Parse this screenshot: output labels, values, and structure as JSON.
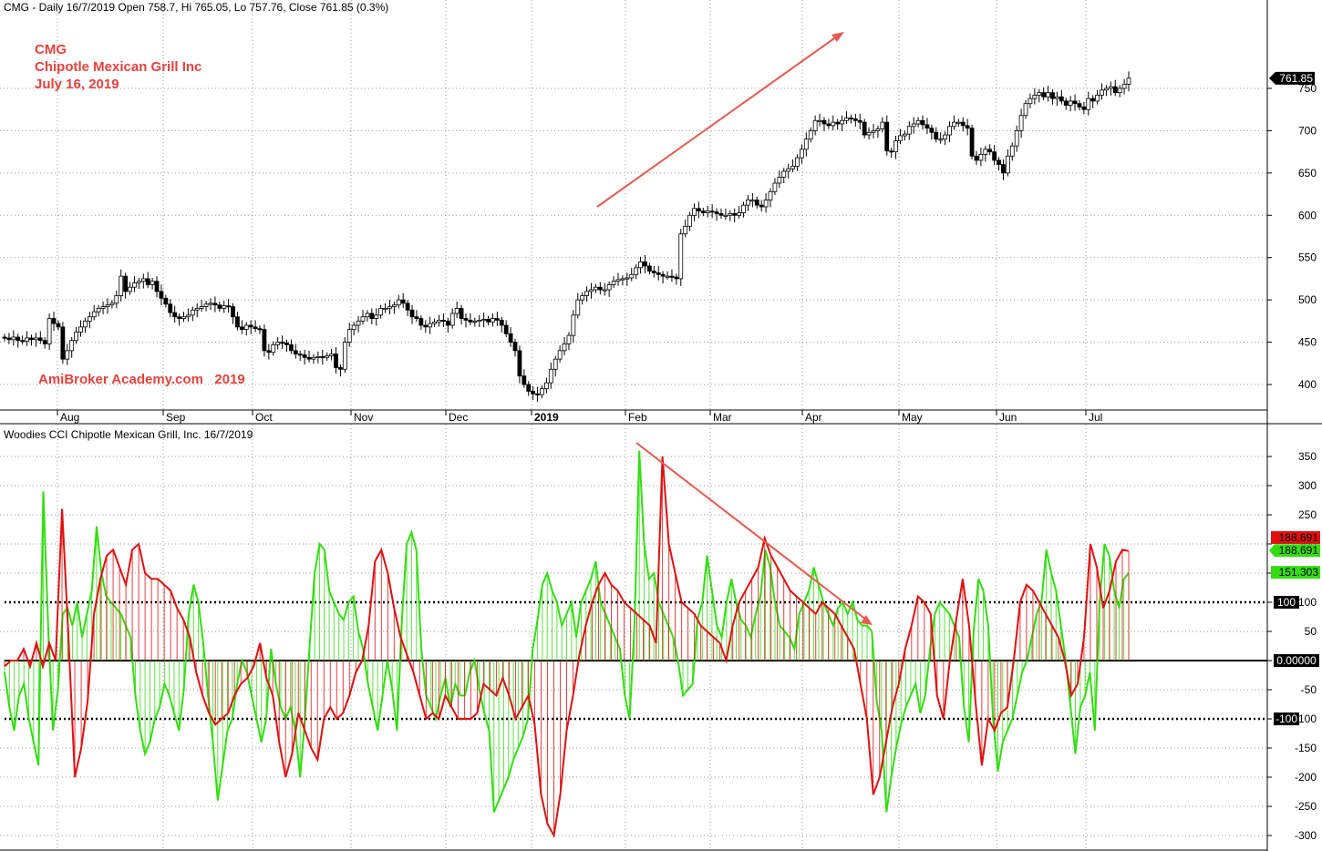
{
  "price_header": "CMG - Daily 16/7/2019 Open 758.7, Hi 765.05, Lo 757.76, Close 761.85 (0.3%)",
  "annotations": {
    "ticker": "CMG",
    "company": "Chipotle Mexican Grill Inc",
    "date": "July 16, 2019",
    "watermark": "AmiBroker Academy.com   2019"
  },
  "cci_header": "Woodies CCI  Chipotle Mexican Grill, Inc. 16/7/2019",
  "x_labels": [
    "Aug",
    "Sep",
    "Oct",
    "Nov",
    "Dec",
    "2019",
    "Feb",
    "Mar",
    "Apr",
    "May",
    "Jun",
    "Jul"
  ],
  "colors": {
    "annotation_red": "#e8413c",
    "cci_green": "#33dd11",
    "cci_red": "#e01010",
    "trend_arrow": "#e65a50"
  },
  "chart_data": [
    {
      "type": "candlestick",
      "title": "CMG - Daily 16/7/2019 Open 758.7, Hi 765.05, Lo 757.76, Close 761.85 (0.3%)",
      "yticks": [
        400,
        450,
        500,
        550,
        600,
        650,
        700,
        750
      ],
      "ylim": [
        385,
        765
      ],
      "last_price_label": "761.85",
      "grid": true,
      "closes": [
        455,
        453,
        456,
        452,
        451,
        455,
        453,
        455,
        452,
        448,
        478,
        472,
        468,
        430,
        440,
        452,
        462,
        468,
        475,
        480,
        486,
        490,
        492,
        494,
        496,
        505,
        528,
        510,
        515,
        520,
        522,
        525,
        518,
        522,
        510,
        502,
        495,
        485,
        480,
        478,
        480,
        482,
        488,
        490,
        492,
        495,
        496,
        494,
        490,
        493,
        492,
        480,
        468,
        465,
        470,
        468,
        466,
        465,
        440,
        438,
        447,
        450,
        449,
        447,
        440,
        436,
        435,
        432,
        430,
        432,
        433,
        432,
        434,
        436,
        420,
        418,
        450,
        465,
        470,
        475,
        480,
        484,
        478,
        482,
        490,
        490,
        492,
        494,
        500,
        496,
        488,
        480,
        478,
        470,
        468,
        472,
        474,
        476,
        475,
        470,
        484,
        490,
        478,
        476,
        474,
        475,
        476,
        477,
        474,
        478,
        476,
        470,
        460,
        450,
        440,
        410,
        400,
        392,
        389,
        388,
        395,
        402,
        418,
        430,
        440,
        448,
        458,
        482,
        500,
        505,
        510,
        512,
        515,
        512,
        512,
        518,
        522,
        524,
        525,
        526,
        530,
        538,
        545,
        540,
        534,
        532,
        530,
        528,
        528,
        527,
        525,
        578,
        587,
        600,
        608,
        605,
        603,
        605,
        604,
        602,
        600,
        600,
        602,
        600,
        603,
        612,
        618,
        618,
        612,
        610,
        618,
        628,
        638,
        645,
        652,
        655,
        658,
        668,
        678,
        690,
        700,
        712,
        712,
        708,
        706,
        710,
        708,
        712,
        715,
        714,
        712,
        710,
        695,
        698,
        700,
        702,
        710,
        676,
        675,
        688,
        694,
        696,
        705,
        708,
        712,
        707,
        703,
        698,
        690,
        690,
        695,
        705,
        710,
        710,
        706,
        703,
        670,
        665,
        672,
        678,
        675,
        665,
        660,
        650,
        670,
        682,
        700,
        718,
        732,
        738,
        742,
        745,
        740,
        745,
        738,
        740,
        735,
        730,
        735,
        732,
        728,
        725,
        738,
        735,
        742,
        748,
        750,
        752,
        745,
        750,
        755,
        762
      ]
    },
    {
      "type": "line",
      "title": "Woodies CCI  Chipotle Mexican Grill, Inc. 16/7/2019",
      "yticks": [
        -300,
        -250,
        -200,
        -150,
        -100,
        -50,
        0,
        50,
        100,
        150,
        200,
        250,
        300,
        350
      ],
      "ylim": [
        -325,
        375
      ],
      "reference_lines": [
        100,
        0,
        -100
      ],
      "value_labels": [
        "188.691",
        "188.691",
        "151.303",
        "100",
        "0.00000",
        "-100"
      ],
      "series": [
        {
          "name": "",
          "color": "#33dd11",
          "values": [
            -20,
            -80,
            -120,
            -60,
            -40,
            -100,
            -140,
            -180,
            290,
            60,
            -120,
            -50,
            80,
            90,
            60,
            100,
            40,
            80,
            120,
            230,
            150,
            110,
            100,
            90,
            80,
            60,
            40,
            -60,
            -120,
            -160,
            -140,
            -100,
            -80,
            -40,
            -60,
            -90,
            -120,
            -50,
            80,
            130,
            100,
            30,
            -60,
            -140,
            -240,
            -180,
            -120,
            -100,
            -40,
            0,
            -20,
            -60,
            -100,
            -140,
            -100,
            20,
            -40,
            -80,
            -100,
            -80,
            -120,
            -200,
            -100,
            30,
            150,
            200,
            190,
            120,
            100,
            80,
            70,
            100,
            110,
            50,
            20,
            -40,
            -80,
            -120,
            -60,
            0,
            -50,
            -120,
            70,
            200,
            220,
            190,
            20,
            -60,
            -80,
            -100,
            -60,
            -30,
            -80,
            -40,
            -60,
            -60,
            -20,
            0,
            -50,
            -90,
            -120,
            -260,
            -240,
            -220,
            -200,
            -170,
            -150,
            -130,
            -100,
            20,
            70,
            130,
            150,
            120,
            100,
            60,
            80,
            100,
            40,
            100,
            120,
            140,
            170,
            100,
            80,
            60,
            40,
            20,
            -60,
            -100,
            60,
            360,
            200,
            140,
            150,
            100,
            80,
            60,
            40,
            0,
            -60,
            -50,
            -40,
            70,
            100,
            180,
            120,
            60,
            40,
            100,
            140,
            100,
            70,
            60,
            40,
            80,
            110,
            190,
            160,
            100,
            60,
            50,
            40,
            20,
            80,
            100,
            120,
            160,
            130,
            100,
            80,
            60,
            90,
            100,
            80,
            100,
            70,
            60,
            60,
            50,
            -70,
            -120,
            -260,
            -200,
            -150,
            -110,
            -80,
            -60,
            -40,
            -90,
            -60,
            20,
            80,
            100,
            90,
            80,
            60,
            40,
            -80,
            -140,
            50,
            140,
            120,
            60,
            -100,
            -190,
            -140,
            -120,
            -100,
            -60,
            -20,
            0,
            40,
            80,
            100,
            190,
            150,
            120,
            60,
            0,
            -80,
            -160,
            -80,
            -60,
            -20,
            -120,
            100,
            200,
            180,
            120,
            90,
            140,
            150
          ]
        },
        {
          "name": "",
          "color": "#e01010",
          "values": [
            -10,
            0,
            0,
            20,
            -10,
            30,
            -10,
            30,
            0,
            260,
            40,
            -200,
            -150,
            -70,
            80,
            140,
            180,
            190,
            160,
            130,
            190,
            200,
            150,
            140,
            140,
            130,
            120,
            90,
            70,
            40,
            -20,
            -60,
            -90,
            -110,
            -100,
            -90,
            -60,
            -40,
            -30,
            -10,
            30,
            -30,
            -60,
            -140,
            -200,
            -160,
            -90,
            -120,
            -150,
            -170,
            -100,
            -80,
            -100,
            -90,
            -60,
            -20,
            0,
            60,
            170,
            190,
            150,
            90,
            40,
            10,
            -20,
            -60,
            -100,
            -90,
            -100,
            -60,
            -80,
            -100,
            -100,
            -100,
            -90,
            -40,
            -50,
            -60,
            -30,
            -60,
            -100,
            -80,
            -60,
            -110,
            -230,
            -280,
            -300,
            -230,
            -120,
            -60,
            10,
            60,
            100,
            130,
            150,
            130,
            120,
            100,
            90,
            80,
            70,
            60,
            30,
            350,
            200,
            150,
            100,
            90,
            80,
            60,
            50,
            40,
            30,
            0,
            60,
            100,
            120,
            140,
            160,
            210,
            180,
            160,
            140,
            120,
            110,
            100,
            90,
            80,
            100,
            90,
            80,
            60,
            40,
            20,
            -40,
            -100,
            -230,
            -200,
            -140,
            -80,
            -40,
            20,
            60,
            110,
            100,
            80,
            -60,
            -100,
            0,
            70,
            140,
            60,
            -70,
            -180,
            -100,
            -120,
            -90,
            -80,
            0,
            100,
            130,
            120,
            100,
            80,
            60,
            40,
            0,
            -60,
            -40,
            40,
            200,
            160,
            90,
            120,
            170,
            190,
            188
          ]
        }
      ]
    }
  ]
}
